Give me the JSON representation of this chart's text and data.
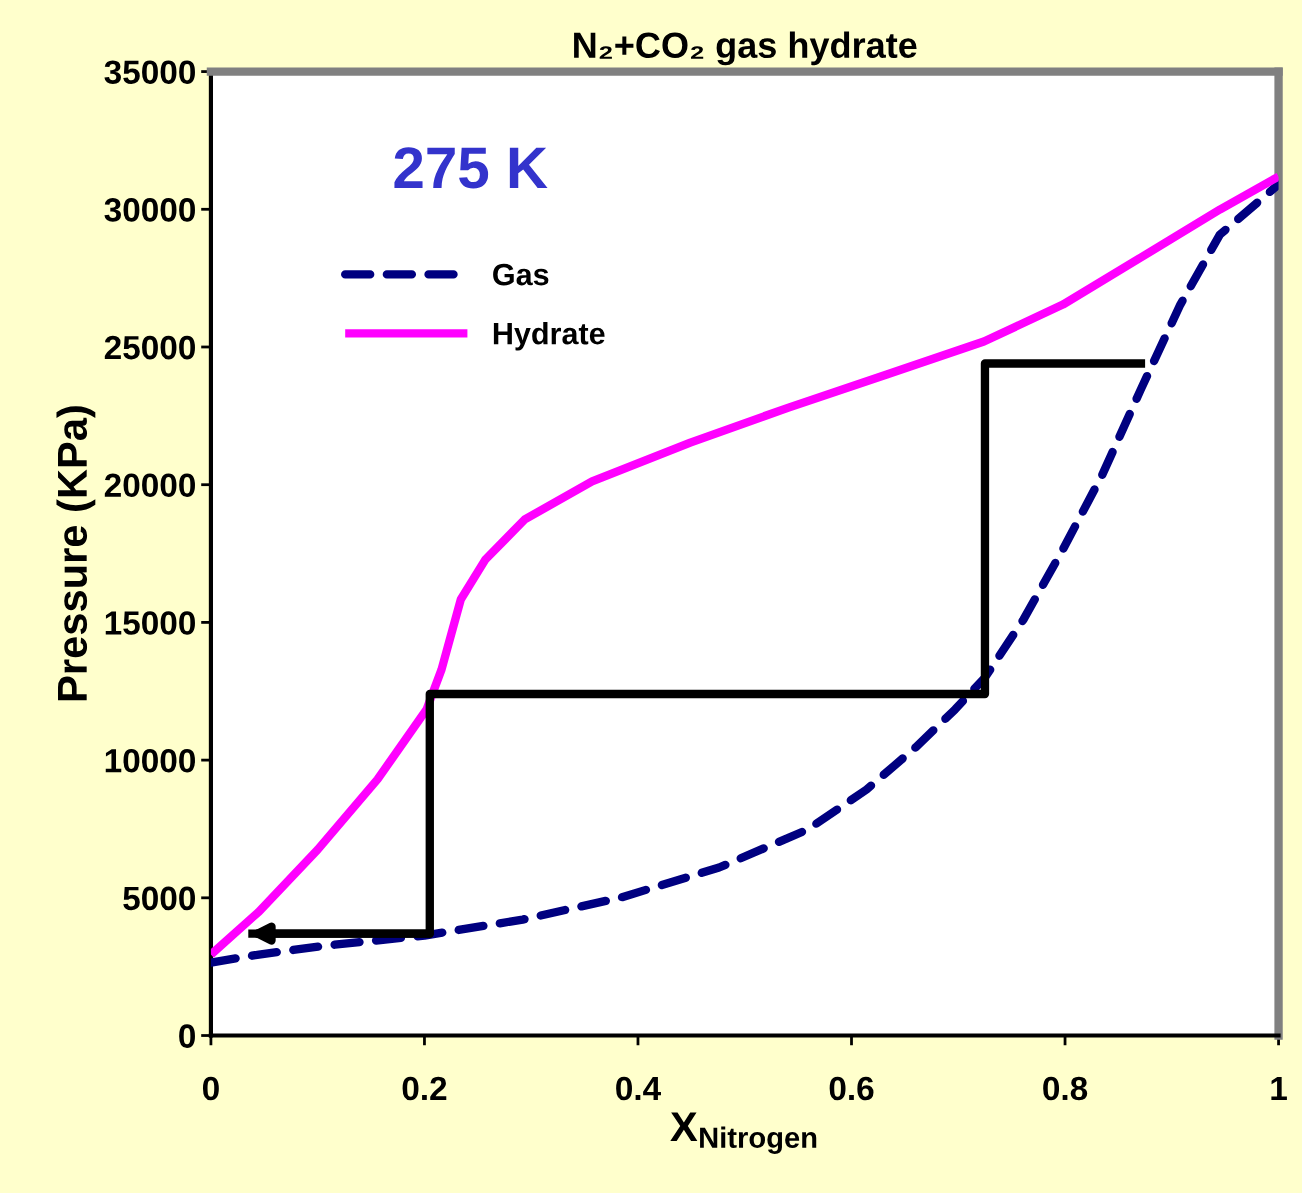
{
  "chart_data": {
    "type": "line",
    "title": "N₂+CO₂ gas hydrate",
    "xlabel": "X$_{Nitrogen}$",
    "ylabel": "Pressure (KPa)",
    "annotations": [
      "275 K"
    ],
    "xlim": [
      0,
      1
    ],
    "ylim": [
      0,
      35000
    ],
    "xticks": [
      0,
      0.2,
      0.4,
      0.6,
      0.8,
      1
    ],
    "yticks": [
      0,
      5000,
      10000,
      15000,
      20000,
      25000,
      30000,
      35000
    ],
    "grid": false,
    "legend": "top left",
    "marker": "none",
    "series": [
      {
        "name": "Gas",
        "color": "#000080",
        "line_style": "dashed",
        "x": [
          0,
          0.045,
          0.109,
          0.2,
          0.292,
          0.384,
          0.476,
          0.559,
          0.614,
          0.66,
          0.697,
          0.725,
          0.761,
          0.798,
          0.835,
          0.871,
          0.908,
          0.945,
          1
        ],
        "values": [
          2650,
          2940,
          3270,
          3630,
          4210,
          5010,
          6100,
          7480,
          8930,
          10460,
          11840,
          13000,
          15100,
          17650,
          20370,
          23460,
          26540,
          29080,
          30900
        ]
      },
      {
        "name": "Hydrate",
        "color": "#ff00ff",
        "line_style": "solid",
        "x": [
          0,
          0.045,
          0.1,
          0.156,
          0.202,
          0.216,
          0.234,
          0.257,
          0.294,
          0.357,
          0.449,
          0.541,
          0.633,
          0.724,
          0.798,
          0.871,
          0.945,
          1
        ],
        "values": [
          2940,
          4500,
          6750,
          9300,
          11840,
          13290,
          15830,
          17280,
          18740,
          20120,
          21530,
          22800,
          24000,
          25200,
          26540,
          28250,
          29990,
          31190
        ]
      },
      {
        "color": "#000000",
        "line_style": "solid",
        "x": [
          0.875,
          0.725,
          0.725,
          0.205,
          0.205,
          0.035
        ],
        "values": [
          24400,
          24400,
          12400,
          12400,
          3700,
          3700
        ]
      }
    ]
  }
}
